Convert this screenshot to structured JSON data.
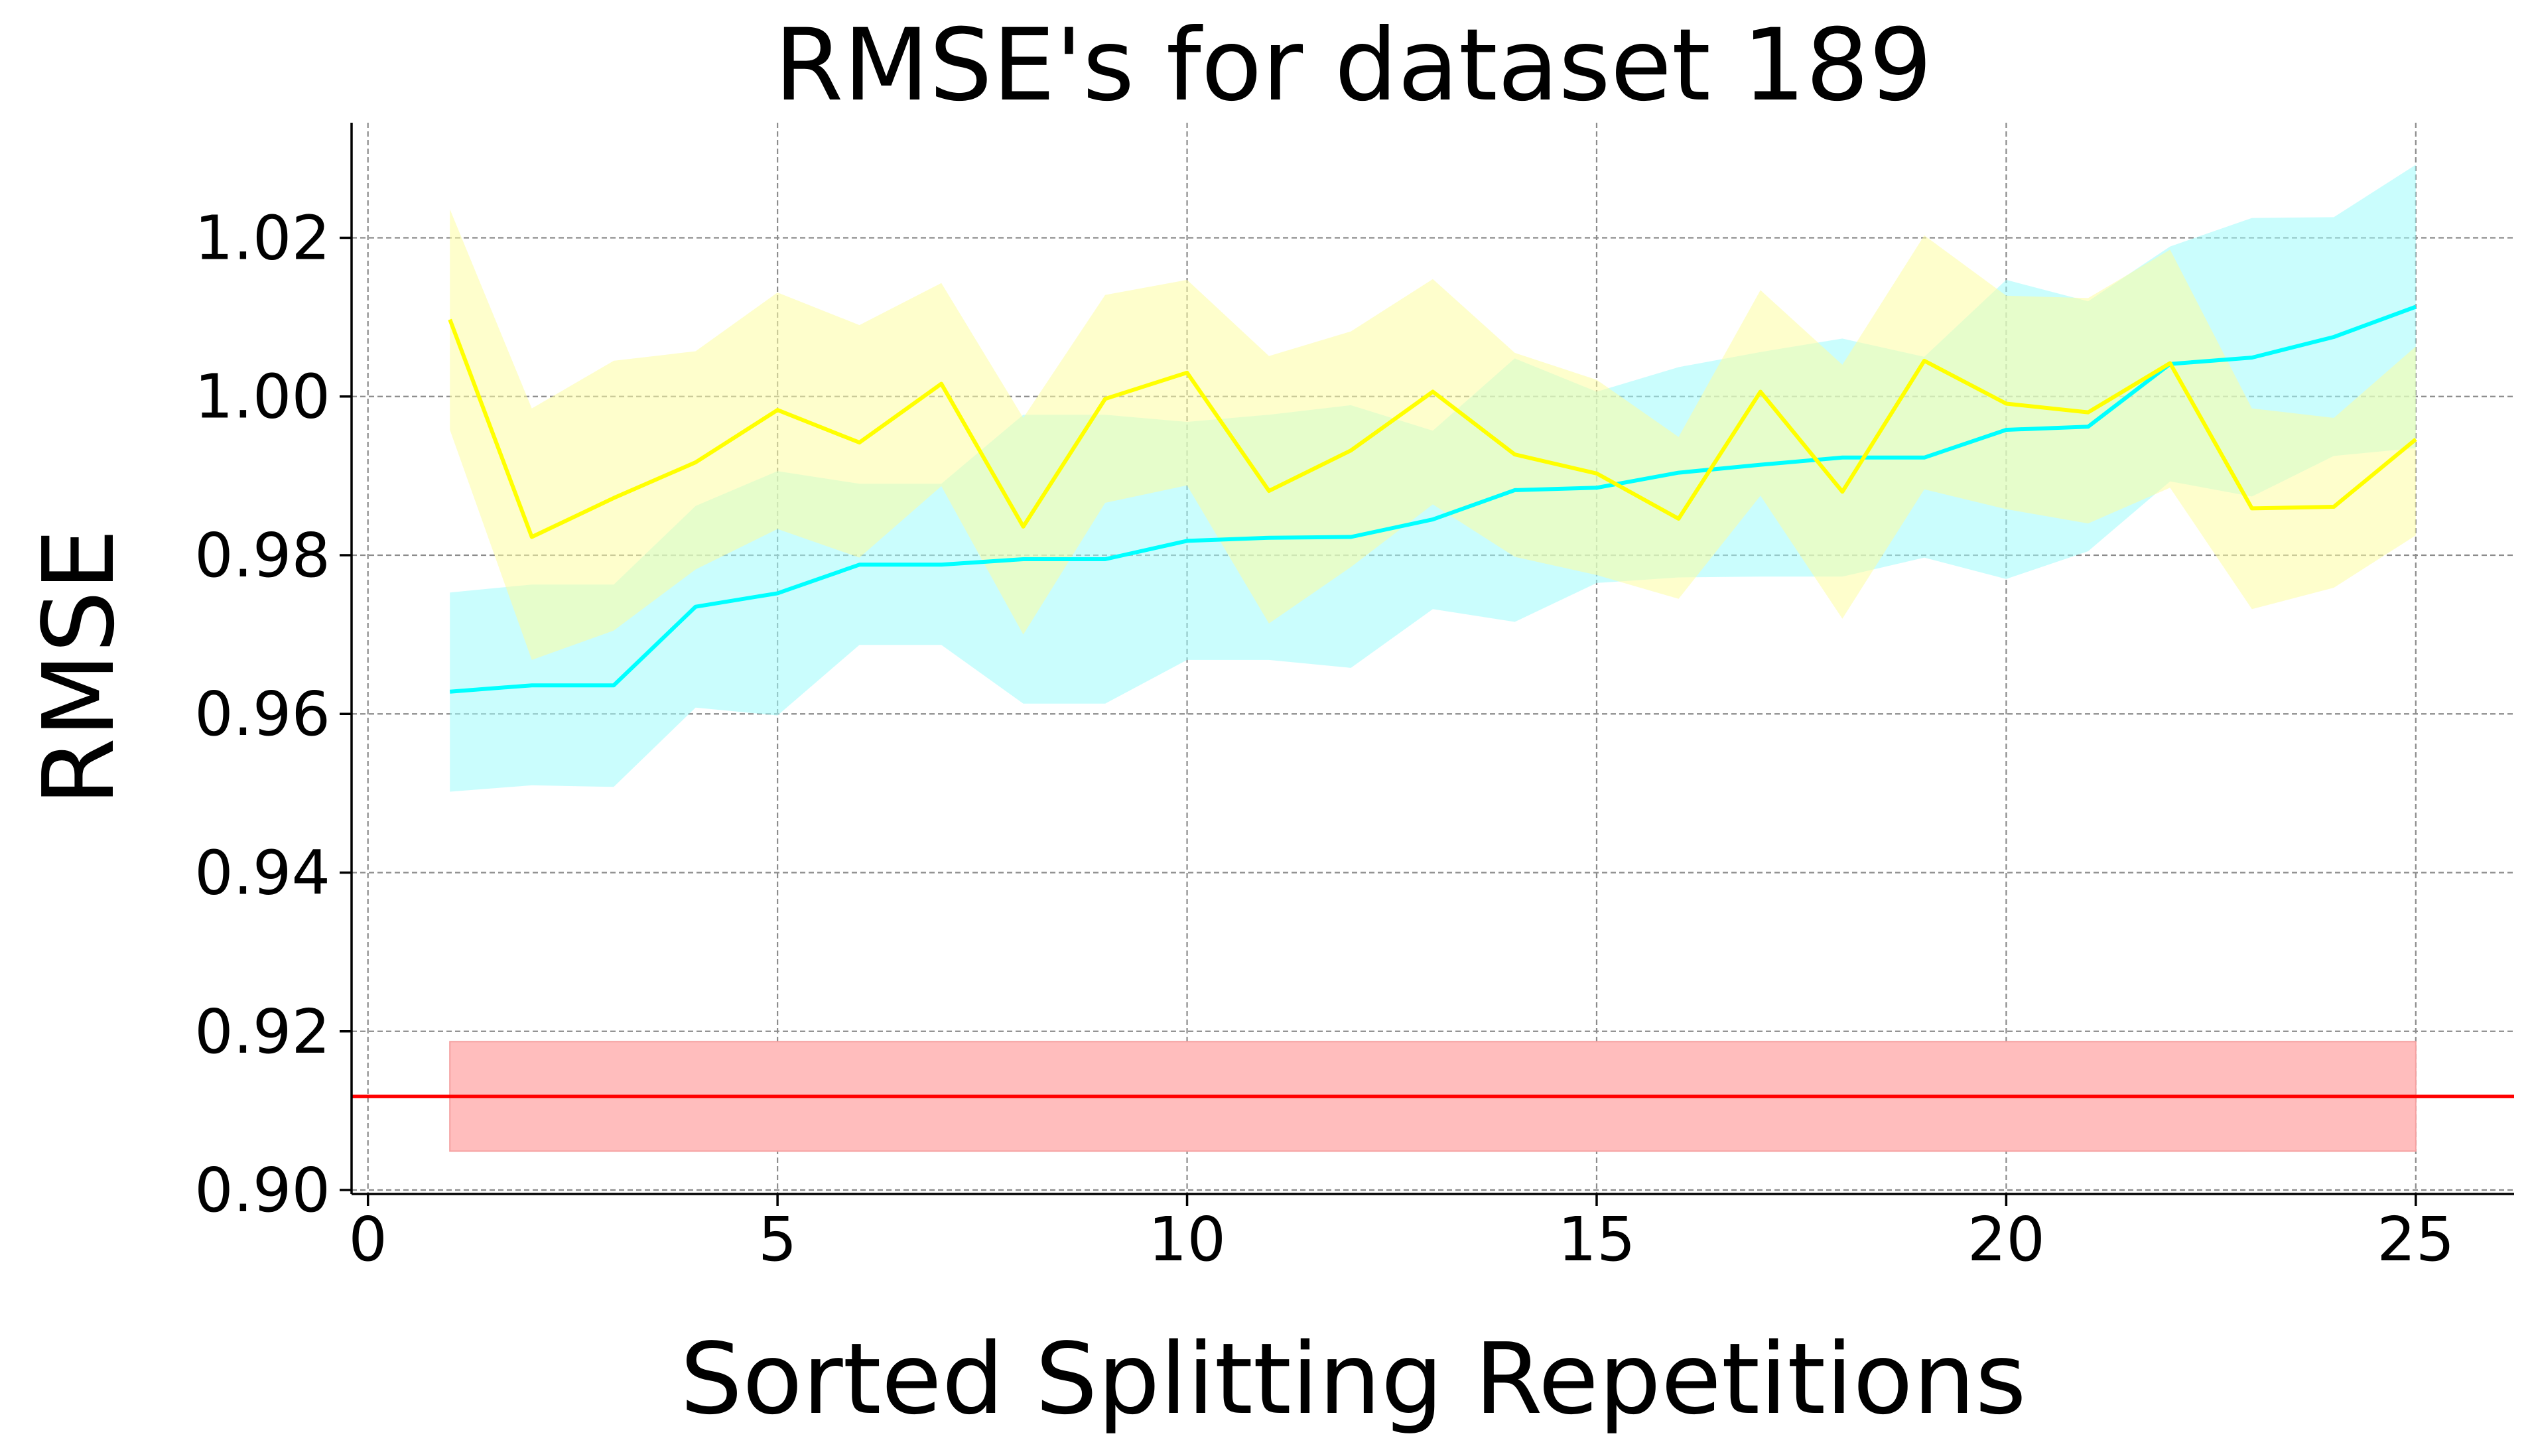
{
  "chart_data": {
    "type": "line",
    "title": "RMSE's for dataset 189",
    "xlabel": "Sorted Splitting Repetitions",
    "ylabel": "RMSE",
    "xlim": [
      -0.2,
      26.2
    ],
    "ylim": [
      0.8995,
      1.0345
    ],
    "xticks": [
      0,
      5,
      10,
      15,
      20,
      25
    ],
    "xtick_labels": [
      "0",
      "5",
      "10",
      "15",
      "20",
      "25"
    ],
    "yticks": [
      0.9,
      0.92,
      0.94,
      0.96,
      0.98,
      1.0,
      1.02
    ],
    "ytick_labels": [
      "0.90",
      "0.92",
      "0.94",
      "0.96",
      "0.98",
      "1.00",
      "1.02"
    ],
    "grid": true,
    "legend": "none",
    "x": [
      1,
      2,
      3,
      4,
      5,
      6,
      7,
      8,
      9,
      10,
      11,
      12,
      13,
      14,
      15,
      16,
      17,
      18,
      19,
      20,
      21,
      22,
      23,
      24,
      25
    ],
    "series": [
      {
        "color": "#00ffff",
        "band_color": "#9ffcfc",
        "values": [
          0.9628,
          0.9636,
          0.9636,
          0.9735,
          0.9752,
          0.9788,
          0.9788,
          0.9795,
          0.9795,
          0.9818,
          0.9822,
          0.9823,
          0.9845,
          0.9882,
          0.9885,
          0.9904,
          0.9914,
          0.9923,
          0.9923,
          0.9958,
          0.9962,
          1.0041,
          1.0049,
          1.0075,
          1.0113
        ],
        "lower": [
          0.9502,
          0.951,
          0.9508,
          0.9608,
          0.9598,
          0.9687,
          0.9687,
          0.9613,
          0.9613,
          0.9668,
          0.9668,
          0.9658,
          0.9732,
          0.9716,
          0.9765,
          0.9772,
          0.9773,
          0.9773,
          0.9797,
          0.977,
          0.9805,
          0.9893,
          0.9874,
          0.9925,
          0.9935
        ],
        "upper": [
          0.9753,
          0.9763,
          0.9763,
          0.9862,
          0.9906,
          0.989,
          0.989,
          0.9977,
          0.9977,
          0.9968,
          0.9977,
          0.9989,
          0.9957,
          1.0048,
          1.0006,
          1.0037,
          1.0056,
          1.0073,
          1.005,
          1.0147,
          1.012,
          1.0189,
          1.0225,
          1.0226,
          1.0292
        ]
      },
      {
        "color": "#ffff00",
        "band_color": "#fdfda2",
        "values": [
          1.0097,
          0.9823,
          0.9872,
          0.9917,
          0.9983,
          0.9942,
          1.0016,
          0.9836,
          0.9997,
          1.003,
          0.9881,
          0.9932,
          1.0006,
          0.9927,
          0.9903,
          0.9846,
          1.0006,
          0.988,
          1.0045,
          0.9991,
          0.998,
          1.0042,
          0.9859,
          0.9861,
          0.9946
        ],
        "lower": [
          0.9958,
          0.9668,
          0.9705,
          0.9782,
          0.9833,
          0.9797,
          0.9887,
          0.97,
          0.9866,
          0.9888,
          0.9714,
          0.9785,
          0.9864,
          0.9798,
          0.9775,
          0.9745,
          0.9875,
          0.972,
          0.9883,
          0.9858,
          0.984,
          0.9885,
          0.9732,
          0.9759,
          0.9825
        ],
        "upper": [
          1.0236,
          0.9985,
          1.0045,
          1.0057,
          1.0131,
          1.009,
          1.0143,
          0.9973,
          1.0128,
          1.0147,
          1.0051,
          1.0082,
          1.0148,
          1.0055,
          1.0021,
          0.9949,
          1.0134,
          1.004,
          1.0203,
          1.0127,
          1.0124,
          1.0185,
          0.9985,
          0.9973,
          1.0063
        ]
      }
    ],
    "reference": {
      "color": "#ff0000",
      "band_color": "#ffbdbd",
      "value": 0.9118,
      "lower": 0.9049,
      "upper": 0.9187,
      "band_x": [
        1,
        25
      ]
    }
  }
}
